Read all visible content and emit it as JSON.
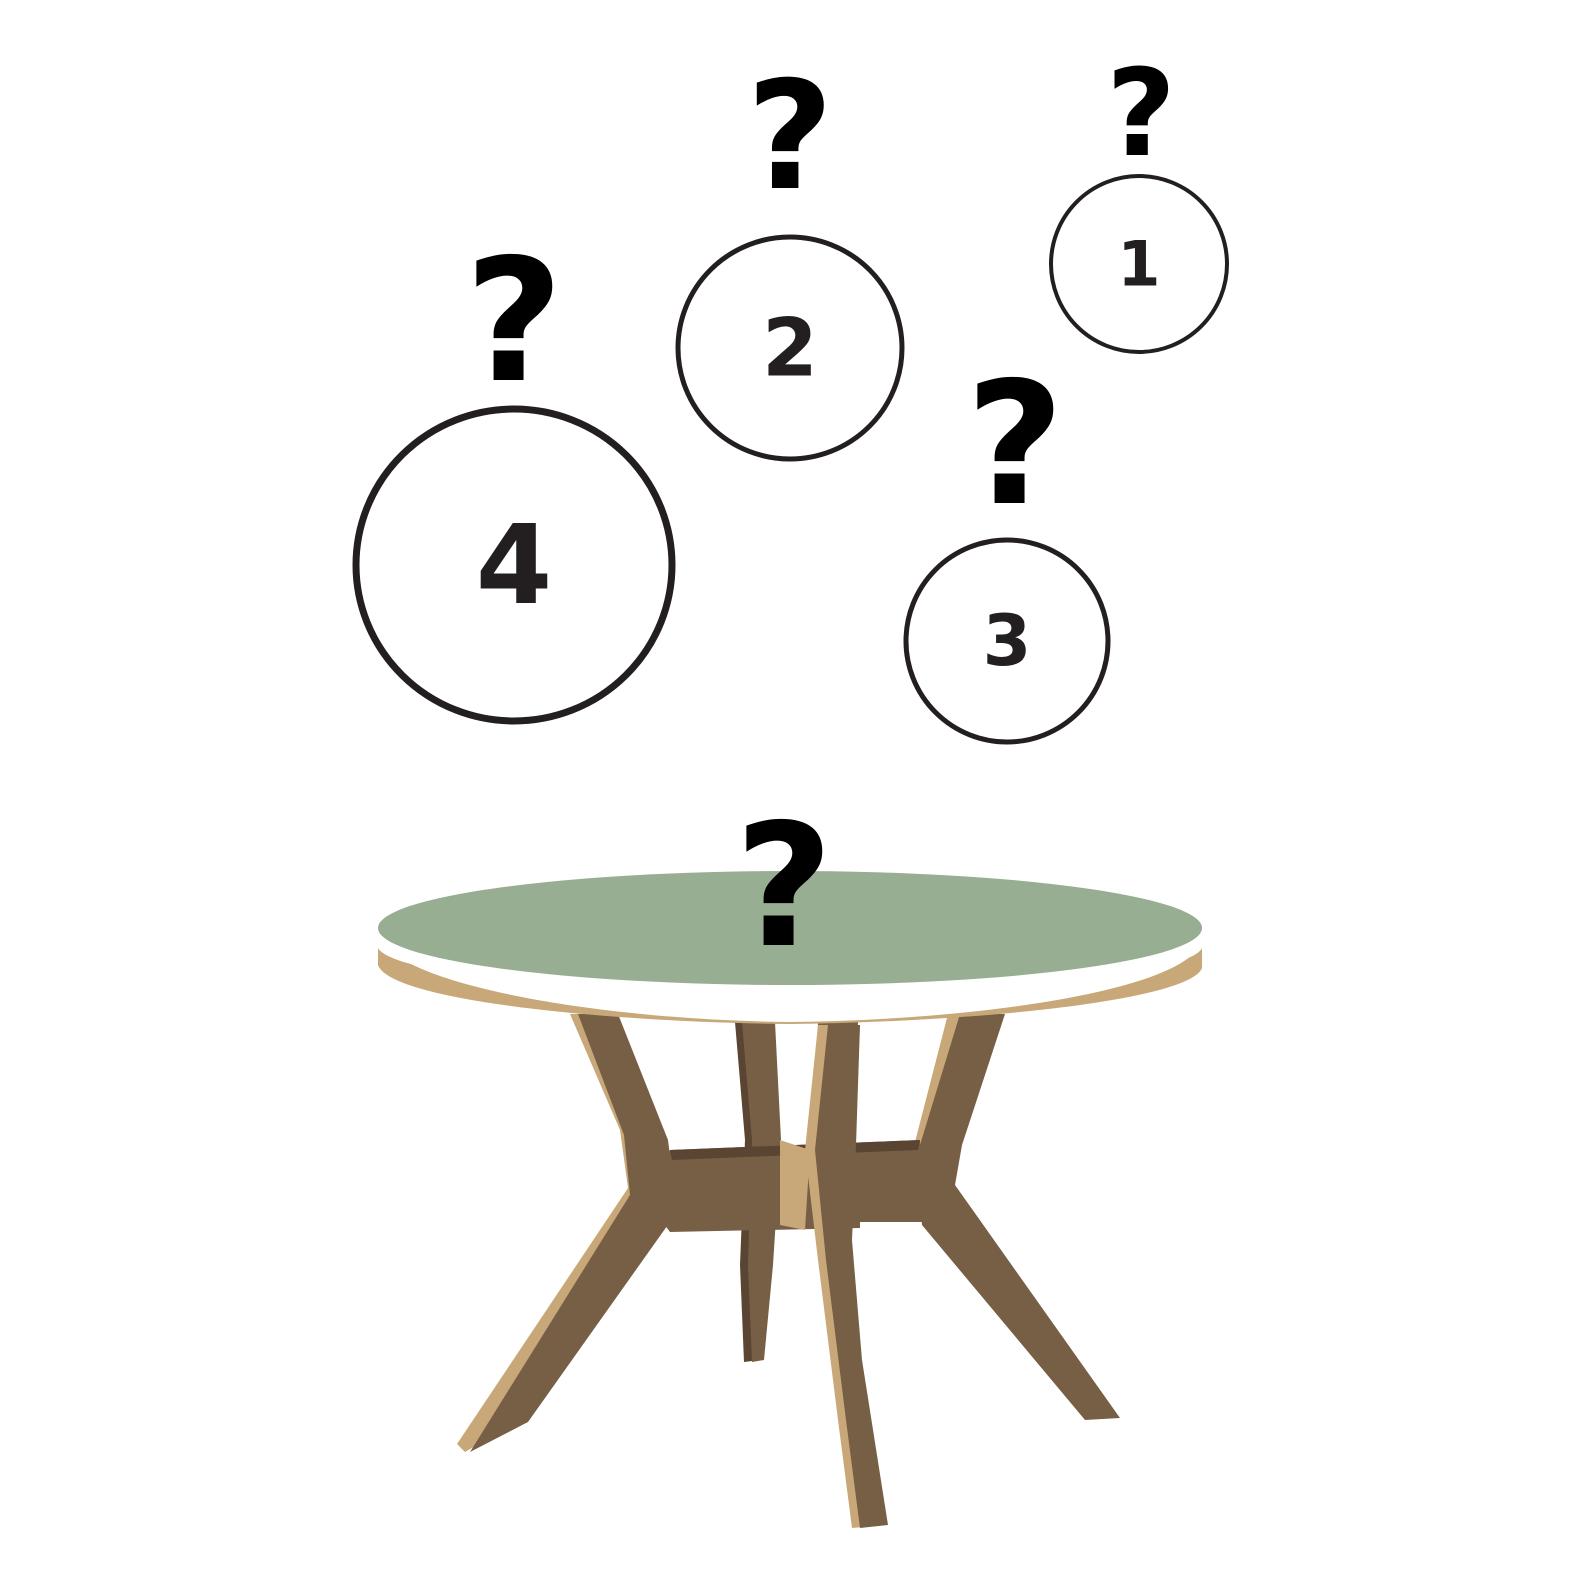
{
  "colors": {
    "ink": "#231f20",
    "table_top": "#97ae93",
    "table_edge": "#c8a878",
    "wood_main": "#775f46",
    "wood_dark": "#5a4533",
    "wood_light": "#c8a878"
  },
  "icons": [
    "question-mark-icon",
    "round-table-illustration"
  ],
  "circles": [
    {
      "label": "4"
    },
    {
      "label": "2"
    },
    {
      "label": "1"
    },
    {
      "label": "3"
    }
  ],
  "question_mark": "?"
}
